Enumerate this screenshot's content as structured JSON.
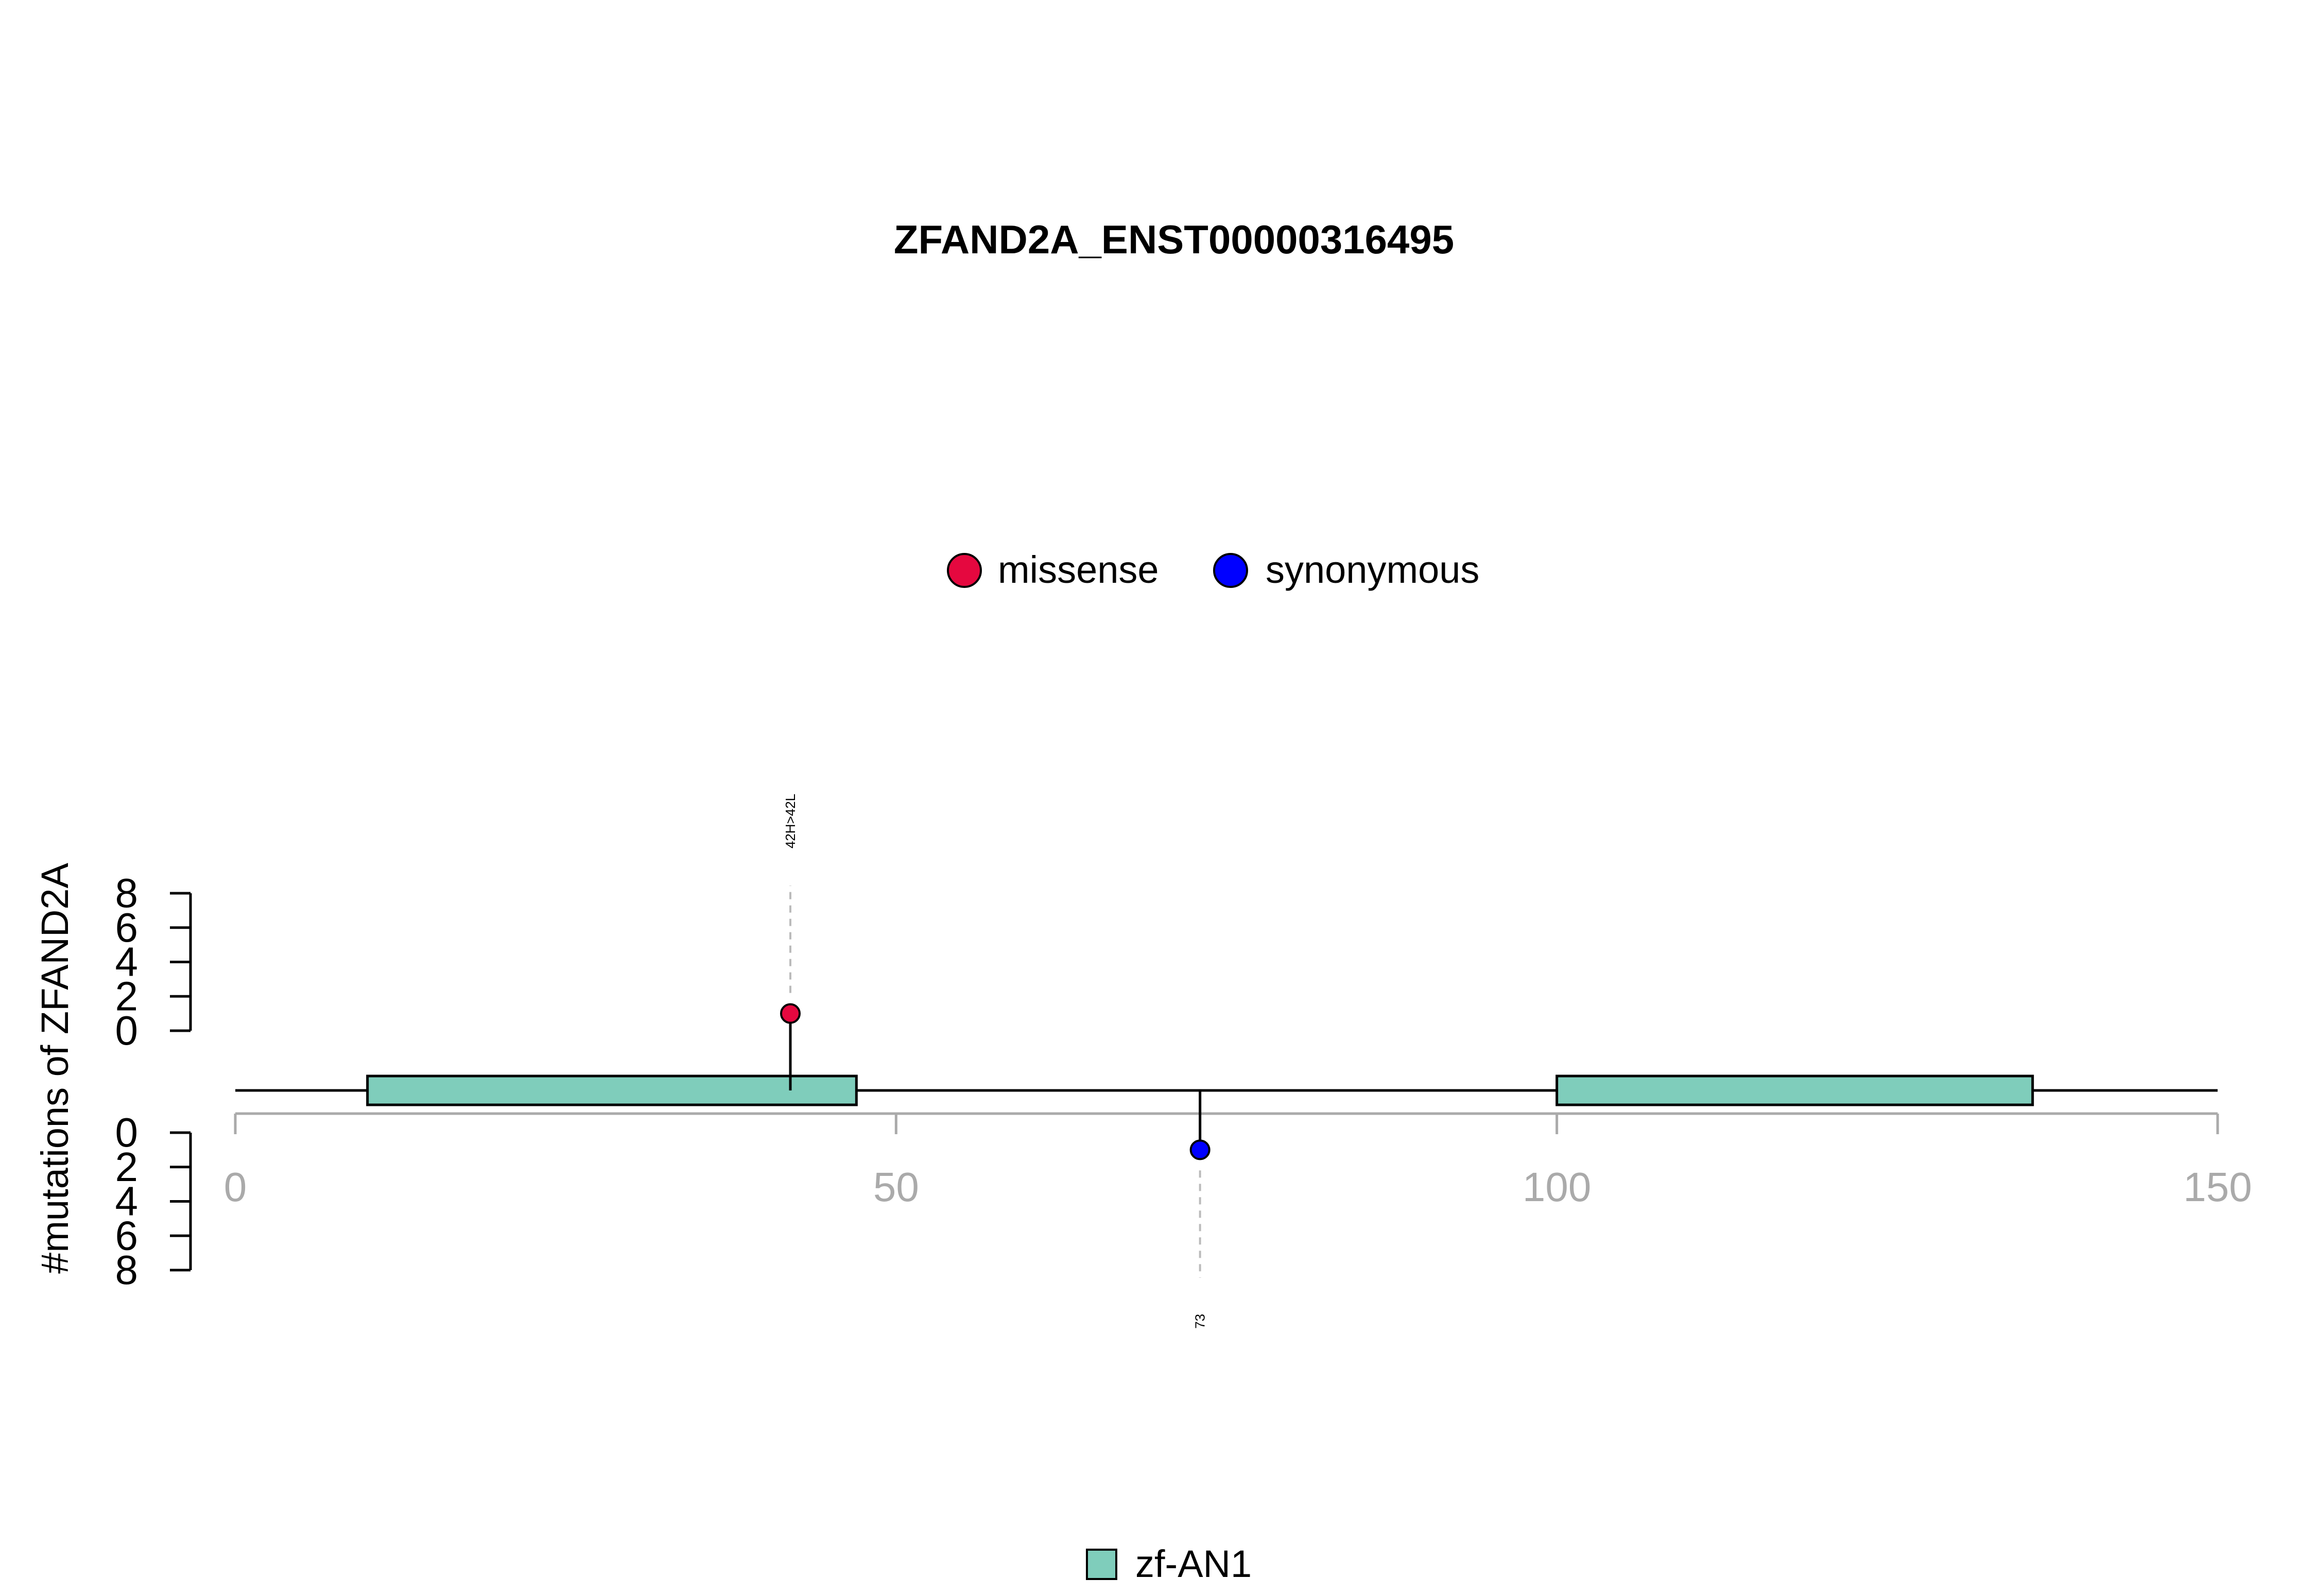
{
  "chart_data": {
    "type": "lollipop",
    "title": "ZFAND2A_ENST00000316495",
    "ylabel": "#mutations of ZFAND2A",
    "xlabel": "",
    "xlim": [
      0,
      150
    ],
    "x_ticks": [
      0,
      50,
      100,
      150
    ],
    "y_ticks": [
      0,
      2,
      4,
      6,
      8
    ],
    "ylim": [
      0,
      8
    ],
    "legend": {
      "placement": "top-center",
      "entries": [
        {
          "name": "missense",
          "color": "#e5083f"
        },
        {
          "name": "synonymous",
          "color": "#0000ff"
        }
      ]
    },
    "domain_legend": {
      "placement": "bottom-center",
      "entries": [
        {
          "name": "zf-AN1",
          "color": "#7fcdbb"
        }
      ]
    },
    "domains": [
      {
        "name": "zf-AN1",
        "start": 10,
        "end": 47,
        "color": "#7fcdbb"
      },
      {
        "name": "zf-AN1",
        "start": 100,
        "end": 136,
        "color": "#7fcdbb"
      }
    ],
    "mutations": [
      {
        "position": 42,
        "count": 1,
        "type": "missense",
        "side": "top",
        "label": "42H>42L",
        "color": "#e5083f"
      },
      {
        "position": 73,
        "count": 1,
        "type": "synonymous",
        "side": "bottom",
        "label": "73",
        "color": "#0000ff"
      }
    ],
    "grid": false
  }
}
